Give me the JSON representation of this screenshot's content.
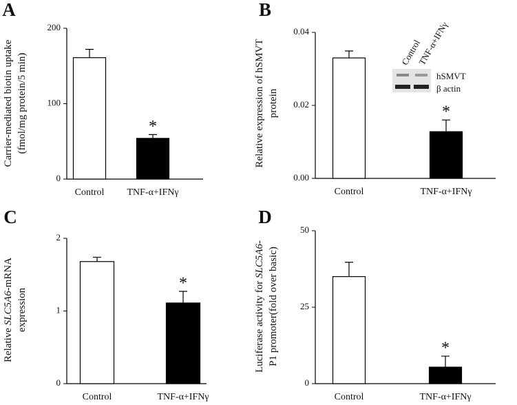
{
  "chart_data": [
    {
      "type": "bar",
      "panel": "A",
      "categories": [
        "Control",
        "TNF-α+IFNγ"
      ],
      "values": [
        161,
        54
      ],
      "errors": [
        11,
        5
      ],
      "colors": [
        "#ffffff",
        "#000000"
      ],
      "ylabel": [
        [
          {
            "text": "Carrier-mediated biotin uptake"
          }
        ],
        [
          {
            "text": "(fmol/mg protein/5 min)"
          }
        ]
      ],
      "ylim": [
        0,
        200
      ],
      "yticks": [
        0,
        100,
        200
      ],
      "annotation": "*"
    },
    {
      "type": "bar",
      "panel": "B",
      "categories": [
        "Control",
        "TNF-α+IFNγ"
      ],
      "values": [
        0.033,
        0.0128
      ],
      "errors": [
        0.0019,
        0.0032
      ],
      "colors": [
        "#ffffff",
        "#000000"
      ],
      "ylabel": [
        [
          {
            "text": "Relative expression of hSMVT"
          }
        ],
        [
          {
            "text": "protein"
          }
        ]
      ],
      "ylim": [
        0,
        0.04
      ],
      "yticks": [
        {
          "value": 0,
          "label": "0.00"
        },
        {
          "value": 0.02,
          "label": "0.02"
        },
        {
          "value": 0.04,
          "label": "0.04"
        }
      ],
      "annotation": "*",
      "inset": {
        "lanes": [
          "Control",
          "TNF-α+IFNγ"
        ],
        "rows": [
          "hSMVT",
          "β actin"
        ]
      }
    },
    {
      "type": "bar",
      "panel": "C",
      "categories": [
        "Control",
        "TNF-α+IFNγ"
      ],
      "values": [
        1.68,
        1.11
      ],
      "errors": [
        0.06,
        0.16
      ],
      "colors": [
        "#ffffff",
        "#000000"
      ],
      "ylabel": [
        [
          {
            "text": "Relative "
          },
          {
            "text": "SLC5A6",
            "italic": true
          },
          {
            "text": "-mRNA"
          }
        ],
        [
          {
            "text": "expression"
          }
        ]
      ],
      "ylim": [
        0,
        2
      ],
      "yticks": [
        0,
        1,
        2
      ],
      "annotation": "*"
    },
    {
      "type": "bar",
      "panel": "D",
      "categories": [
        "Control",
        "TNF-α+IFNγ"
      ],
      "values": [
        35,
        5.4
      ],
      "errors": [
        4.7,
        3.6
      ],
      "colors": [
        "#ffffff",
        "#000000"
      ],
      "ylabel": [
        [
          {
            "text": "Luciferase activity for "
          },
          {
            "text": "SLC5A6",
            "italic": true
          },
          {
            "text": "-"
          }
        ],
        [
          {
            "text": "P1 promoter(fold over basic)"
          }
        ]
      ],
      "ylim": [
        0,
        50
      ],
      "yticks": [
        0,
        25,
        50
      ],
      "annotation": "*"
    }
  ]
}
